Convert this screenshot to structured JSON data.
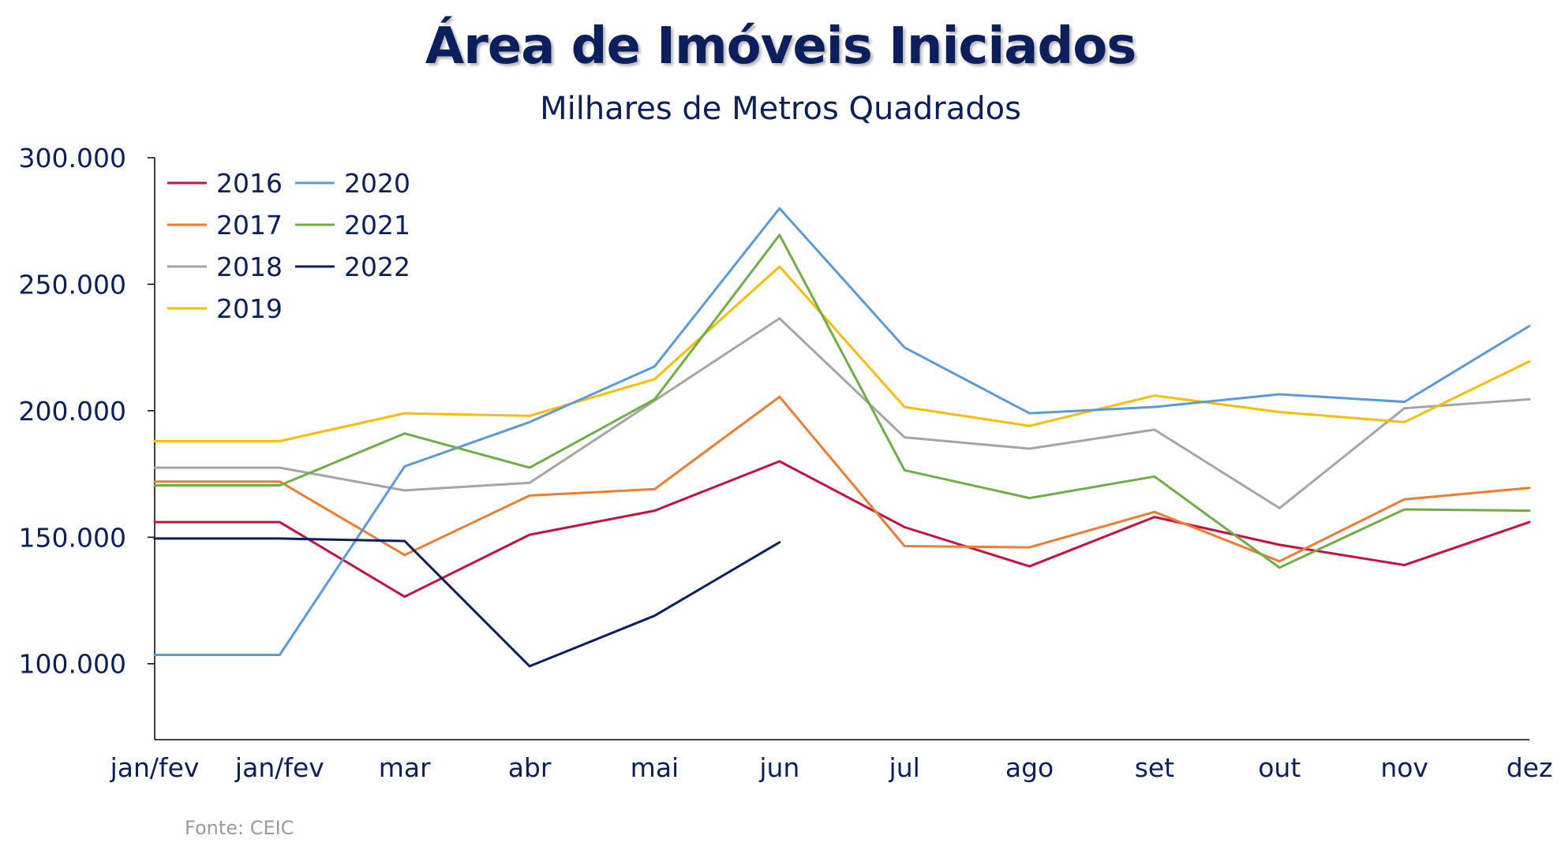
{
  "chart_data": {
    "type": "line",
    "title": "Área de Imóveis Iniciados",
    "subtitle": "Milhares de Metros Quadrados",
    "categories": [
      "jan/fev",
      "jan/fev",
      "mar",
      "abr",
      "mai",
      "jun",
      "jul",
      "ago",
      "set",
      "out",
      "nov",
      "dez"
    ],
    "y_ticks": [
      100000,
      150000,
      200000,
      250000,
      300000
    ],
    "y_tick_labels": [
      "100.000",
      "150.000",
      "200.000",
      "250.000",
      "300.000"
    ],
    "ylim": [
      70000,
      300000
    ],
    "grid": false,
    "legend_position": "top-left",
    "series": [
      {
        "name": "2016",
        "color": "#c8103e",
        "values": [
          156000,
          156000,
          126500,
          151000,
          160500,
          180000,
          154000,
          138500,
          158000,
          147000,
          139000,
          156000
        ]
      },
      {
        "name": "2017",
        "color": "#ee7d31",
        "values": [
          172000,
          172000,
          143000,
          166500,
          169000,
          205500,
          146500,
          146000,
          160000,
          140500,
          165000,
          169500
        ]
      },
      {
        "name": "2018",
        "color": "#a5a5a5",
        "values": [
          177500,
          177500,
          168500,
          171500,
          204000,
          236500,
          189500,
          185000,
          192500,
          161500,
          201000,
          204500
        ]
      },
      {
        "name": "2019",
        "color": "#fbbc04",
        "values": [
          188000,
          188000,
          199000,
          198000,
          212500,
          257000,
          201500,
          194000,
          206000,
          199500,
          195500,
          219500
        ]
      },
      {
        "name": "2020",
        "color": "#5b9bd5",
        "values": [
          103500,
          103500,
          178000,
          195500,
          217500,
          280000,
          225000,
          199000,
          201500,
          206500,
          203500,
          233500
        ]
      },
      {
        "name": "2021",
        "color": "#70ad47",
        "values": [
          170500,
          170500,
          191000,
          177500,
          204500,
          269500,
          176500,
          165500,
          174000,
          138000,
          161000,
          160500
        ]
      },
      {
        "name": "2022",
        "color": "#0b1f5c",
        "values": [
          149500,
          149500,
          148500,
          99000,
          119000,
          148000,
          null,
          null,
          null,
          null,
          null,
          null
        ]
      }
    ],
    "source": "Fonte:  CEIC"
  }
}
